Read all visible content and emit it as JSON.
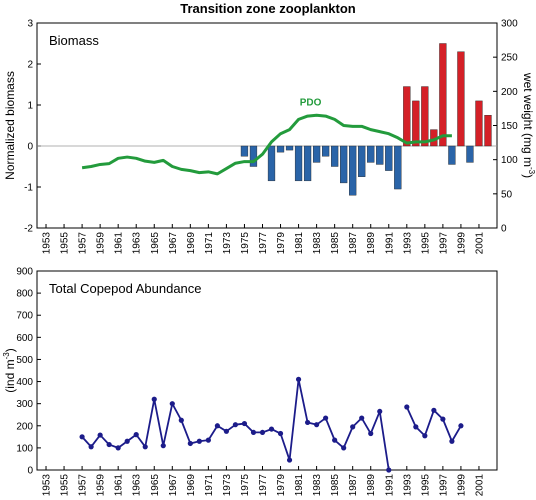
{
  "chart_data": [
    {
      "type": "bar",
      "title": "Transition zone zooplankton",
      "label": "Biomass",
      "y_label": "Normalized biomass",
      "y2_label": {
        "text": "wet weight (mg m",
        "sup": "-3",
        "end": ")"
      },
      "xlim": [
        1952,
        2003
      ],
      "xticks": [
        1953,
        1955,
        1957,
        1959,
        1961,
        1963,
        1965,
        1967,
        1969,
        1971,
        1973,
        1975,
        1977,
        1979,
        1981,
        1983,
        1985,
        1987,
        1989,
        1991,
        1993,
        1995,
        1997,
        1999,
        2001
      ],
      "ylim": [
        -2,
        3
      ],
      "yticks": [
        -2,
        -1,
        0,
        1,
        2,
        3
      ],
      "y2lim": [
        0,
        300
      ],
      "y2ticks": [
        0,
        50,
        100,
        150,
        200,
        250,
        300
      ],
      "series": [
        {
          "type": "bar",
          "positive_color": "#d42027",
          "negative_color": "#2a64a8",
          "x": [
            1975,
            1976,
            1978,
            1979,
            1980,
            1981,
            1982,
            1983,
            1984,
            1985,
            1986,
            1987,
            1988,
            1989,
            1990,
            1991,
            1992,
            1993,
            1994,
            1995,
            1996,
            1997,
            1998,
            1999,
            2000,
            2001,
            2002
          ],
          "values": [
            -0.25,
            -0.5,
            -0.85,
            -0.15,
            -0.1,
            -0.85,
            -0.85,
            -0.4,
            -0.25,
            -0.5,
            -0.9,
            -1.2,
            -0.75,
            -0.4,
            -0.45,
            -0.6,
            -1.05,
            1.45,
            1.1,
            1.45,
            0.4,
            2.5,
            -0.45,
            2.3,
            -0.4,
            1.1,
            0.75
          ]
        },
        {
          "type": "line",
          "name": "PDO",
          "color": "#239b3c",
          "x": [
            1957,
            1958,
            1959,
            1960,
            1961,
            1962,
            1963,
            1964,
            1965,
            1966,
            1967,
            1968,
            1969,
            1970,
            1971,
            1972,
            1973,
            1974,
            1975,
            1976,
            1977,
            1978,
            1979,
            1980,
            1981,
            1982,
            1983,
            1984,
            1985,
            1986,
            1987,
            1988,
            1989,
            1990,
            1991,
            1992,
            1993,
            1994,
            1995,
            1996,
            1997,
            1998
          ],
          "values": [
            -0.53,
            -0.5,
            -0.45,
            -0.43,
            -0.3,
            -0.27,
            -0.3,
            -0.37,
            -0.4,
            -0.35,
            -0.5,
            -0.57,
            -0.6,
            -0.65,
            -0.63,
            -0.68,
            -0.55,
            -0.42,
            -0.38,
            -0.38,
            -0.2,
            0.1,
            0.3,
            0.4,
            0.65,
            0.73,
            0.75,
            0.73,
            0.65,
            0.5,
            0.48,
            0.48,
            0.4,
            0.35,
            0.3,
            0.2,
            0.07,
            0.1,
            0.1,
            0.15,
            0.25,
            0.25
          ]
        }
      ]
    },
    {
      "type": "line",
      "label": "Total Copepod Abundance",
      "y_label": {
        "text": "(ind m",
        "sup": "-3",
        "end": ")"
      },
      "xlim": [
        1952,
        2003
      ],
      "xticks": [
        1953,
        1955,
        1957,
        1959,
        1961,
        1963,
        1965,
        1967,
        1969,
        1971,
        1973,
        1975,
        1977,
        1979,
        1981,
        1983,
        1985,
        1987,
        1989,
        1991,
        1993,
        1995,
        1997,
        1999,
        2001
      ],
      "ylim": [
        0,
        900
      ],
      "yticks": [
        0,
        100,
        200,
        300,
        400,
        500,
        600,
        700,
        800,
        900
      ],
      "series": [
        {
          "color": "#1c1c8a",
          "x": [
            1957,
            1958,
            1959,
            1960,
            1961,
            1962,
            1963,
            1964,
            1965,
            1966,
            1967,
            1968,
            1969,
            1970,
            1971,
            1972,
            1973,
            1974,
            1975,
            1976,
            1977,
            1978,
            1979,
            1980,
            1981,
            1982,
            1983,
            1984,
            1985,
            1986,
            1987,
            1988,
            1989,
            1990,
            1991,
            1992,
            1993,
            1994,
            1995,
            1996,
            1997,
            1998,
            1999
          ],
          "values": [
            150,
            105,
            158,
            115,
            100,
            130,
            160,
            105,
            320,
            110,
            300,
            225,
            120,
            130,
            135,
            200,
            175,
            205,
            210,
            170,
            170,
            185,
            165,
            45,
            410,
            215,
            205,
            235,
            135,
            100,
            195,
            235,
            165,
            265,
            0,
            null,
            285,
            195,
            155,
            270,
            230,
            130,
            200
          ]
        }
      ]
    }
  ]
}
